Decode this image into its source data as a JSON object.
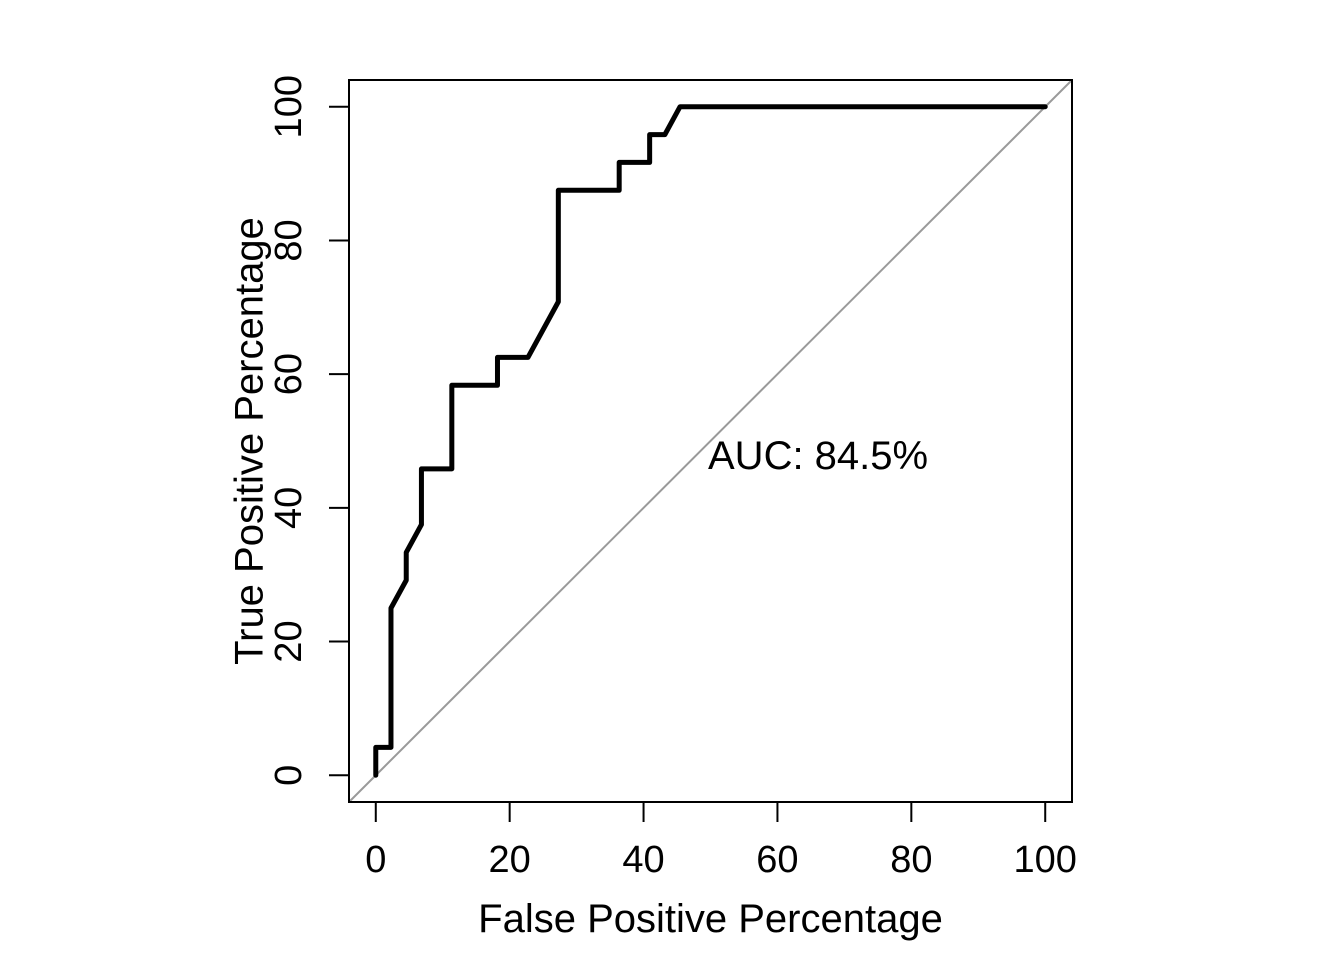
{
  "chart_data": {
    "type": "line",
    "subtype": "roc-step-curve",
    "title": "",
    "xlabel": "False Positive Percentage",
    "ylabel": "True Positive Percentage",
    "xlim": [
      -4,
      104
    ],
    "ylim": [
      -4,
      104
    ],
    "x_ticks": [
      "0",
      "20",
      "40",
      "60",
      "80",
      "100"
    ],
    "x_tick_values": [
      0,
      20,
      40,
      60,
      80,
      100
    ],
    "y_ticks": [
      "0",
      "20",
      "40",
      "60",
      "80",
      "100"
    ],
    "y_tick_values": [
      0,
      20,
      40,
      60,
      80,
      100
    ],
    "grid": false,
    "legend": null,
    "annotation": {
      "text": "AUC: 84.5%",
      "x": 49.7,
      "y": 48
    },
    "reference_line": {
      "from": [
        -4,
        -4
      ],
      "to": [
        104,
        104
      ]
    },
    "series": [
      {
        "name": "ROC curve",
        "points": [
          [
            0,
            0
          ],
          [
            0,
            4.17
          ],
          [
            2.27,
            4.17
          ],
          [
            2.27,
            25
          ],
          [
            4.55,
            29.17
          ],
          [
            4.55,
            33.33
          ],
          [
            6.82,
            37.5
          ],
          [
            6.82,
            45.83
          ],
          [
            11.36,
            45.83
          ],
          [
            11.36,
            58.33
          ],
          [
            18.18,
            58.33
          ],
          [
            18.18,
            62.5
          ],
          [
            22.73,
            62.5
          ],
          [
            27.27,
            70.83
          ],
          [
            27.27,
            87.5
          ],
          [
            36.36,
            87.5
          ],
          [
            36.36,
            91.67
          ],
          [
            40.91,
            91.67
          ],
          [
            40.91,
            95.83
          ],
          [
            43.18,
            95.83
          ],
          [
            45.45,
            100
          ],
          [
            100,
            100
          ]
        ]
      }
    ],
    "colors": {
      "curve": "#000000",
      "reference": "#9a9a9a",
      "axis": "#000000",
      "text": "#000000",
      "background": "#ffffff"
    }
  }
}
